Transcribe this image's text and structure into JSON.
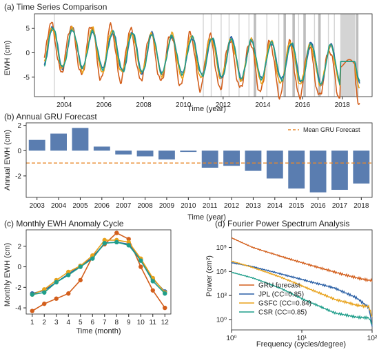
{
  "chart_data": [
    {
      "type": "line",
      "title": "(a) Time Series Comparison",
      "xlabel": "Time (year)",
      "ylabel": "EWH (cm)",
      "xlim": [
        2002.5,
        2019.5
      ],
      "ylim": [
        -9,
        8
      ],
      "xticks": [
        2004,
        2006,
        2008,
        2010,
        2012,
        2014,
        2016,
        2018
      ],
      "yticks": [
        -5,
        0,
        5
      ],
      "gaps_light": [
        2003.5,
        2011.0,
        2011.4,
        2011.9,
        2012.3,
        2012.8,
        2013.3,
        2014.2,
        2014.8,
        2015.8,
        2016.6,
        2017.3,
        2017.6
      ],
      "gaps_dark": [
        2013.6,
        2015.1,
        2015.55,
        2016.1,
        2016.85,
        2018.75
      ],
      "gap_band": [
        2017.9,
        2018.65
      ],
      "series": [
        {
          "name": "GRU",
          "color": "#d35f1c",
          "amp": 5.2,
          "phase": 0.0,
          "trend": -0.38,
          "noise": 1.0
        },
        {
          "name": "JPL",
          "color": "#2a5fa5",
          "amp": 3.9,
          "phase": 0.08,
          "trend": -0.25,
          "noise": 0.6
        },
        {
          "name": "GSFC",
          "color": "#e8a21b",
          "amp": 4.2,
          "phase": 0.05,
          "trend": -0.27,
          "noise": 0.7
        },
        {
          "name": "CSR",
          "color": "#1f9e8a",
          "amp": 3.9,
          "phase": 0.08,
          "trend": -0.25,
          "noise": 0.55
        }
      ]
    },
    {
      "type": "bar",
      "title": "(b) Annual GRU Forecast",
      "xlabel": "Time (year)",
      "ylabel": "Annual EWH (cm)",
      "ylim": [
        -3.7,
        2.2
      ],
      "yticks": [
        -2,
        0,
        2
      ],
      "categories": [
        "2003",
        "2004",
        "2005",
        "2006",
        "2007",
        "2008",
        "2009",
        "2010",
        "2011",
        "2012",
        "2013",
        "2014",
        "2015",
        "2016",
        "2017",
        "2018"
      ],
      "values": [
        0.85,
        1.35,
        1.8,
        0.32,
        -0.3,
        -0.45,
        -0.7,
        -0.1,
        -1.35,
        -1.2,
        -1.6,
        -2.2,
        -3.0,
        -3.3,
        -3.1,
        -2.6
      ],
      "bar_color": "#5a7db0",
      "mean_line": {
        "label": "Mean GRU Forecast",
        "value": -0.98,
        "color": "#e8872a"
      }
    },
    {
      "type": "line",
      "title": "(c) Monthly EWH Anomaly Cycle",
      "xlabel": "Time (month)",
      "ylabel": "Monthly EWH (cm)",
      "xlim": [
        0.5,
        12.5
      ],
      "ylim": [
        -4.6,
        3.6
      ],
      "yticks": [
        -4,
        -2,
        0,
        2
      ],
      "x": [
        1,
        2,
        3,
        4,
        5,
        6,
        7,
        8,
        9,
        10,
        11,
        12
      ],
      "series": [
        {
          "name": "GRU",
          "color": "#d35f1c",
          "values": [
            -4.3,
            -3.6,
            -3.1,
            -2.6,
            -1.3,
            1.0,
            2.2,
            3.3,
            2.7,
            0.0,
            -2.3,
            -4.0
          ]
        },
        {
          "name": "JPL",
          "color": "#2a5fa5",
          "values": [
            -2.6,
            -2.3,
            -1.5,
            -0.7,
            0.1,
            0.9,
            2.3,
            2.4,
            2.2,
            0.7,
            -1.2,
            -2.4
          ]
        },
        {
          "name": "GSFC",
          "color": "#e8a21b",
          "values": [
            -2.7,
            -2.2,
            -1.3,
            -0.5,
            0.1,
            1.1,
            2.6,
            2.6,
            2.4,
            0.8,
            -1.1,
            -2.5
          ]
        },
        {
          "name": "CSR",
          "color": "#1f9e8a",
          "values": [
            -2.7,
            -2.5,
            -1.5,
            -0.8,
            0.0,
            0.8,
            2.3,
            2.4,
            2.1,
            0.6,
            -1.4,
            -2.6
          ]
        }
      ]
    },
    {
      "type": "line",
      "title": "(d) Fourier Power Spectrum Analysis",
      "xlabel": "Frequency (cycles/degree)",
      "ylabel": "Power (cm²)",
      "xscale": "log",
      "yscale": "log",
      "xlim": [
        1,
        100
      ],
      "ylim_exp": [
        -1.3,
        11.2
      ],
      "xtick_labels": [
        "10⁰",
        "10¹",
        "10²"
      ],
      "ytick_labels": [
        "10⁰",
        "10³",
        "10⁶",
        "10⁹"
      ],
      "legend": "lower-left",
      "series": [
        {
          "name": "GRU forecast",
          "color": "#d35f1c",
          "log_power": [
            [
              1,
              10.2
            ],
            [
              2,
              9.0
            ],
            [
              5,
              7.9
            ],
            [
              10,
              7.1
            ],
            [
              30,
              5.9
            ],
            [
              60,
              5.2
            ],
            [
              90,
              4.9
            ],
            [
              100,
              4.9
            ]
          ]
        },
        {
          "name": "JPL (CC=0.85)",
          "color": "#2a5fa5",
          "log_power": [
            [
              1,
              7.1
            ],
            [
              2,
              6.6
            ],
            [
              5,
              5.7
            ],
            [
              10,
              5.0
            ],
            [
              30,
              3.9
            ],
            [
              60,
              2.7
            ],
            [
              90,
              1.5
            ],
            [
              100,
              -0.8
            ]
          ]
        },
        {
          "name": "GSFC (CC=0.84)",
          "color": "#e8a21b",
          "log_power": [
            [
              1,
              7.3
            ],
            [
              2,
              6.5
            ],
            [
              5,
              5.3
            ],
            [
              10,
              4.2
            ],
            [
              30,
              2.5
            ],
            [
              60,
              1.8
            ],
            [
              90,
              1.6
            ],
            [
              100,
              0.3
            ]
          ]
        },
        {
          "name": "CSR (CC=0.85)",
          "color": "#1f9e8a",
          "log_power": [
            [
              1,
              5.9
            ],
            [
              2,
              5.2
            ],
            [
              5,
              3.9
            ],
            [
              10,
              2.6
            ],
            [
              30,
              0.8
            ],
            [
              60,
              0.3
            ],
            [
              90,
              0.2
            ],
            [
              100,
              -0.6
            ]
          ]
        }
      ]
    }
  ]
}
